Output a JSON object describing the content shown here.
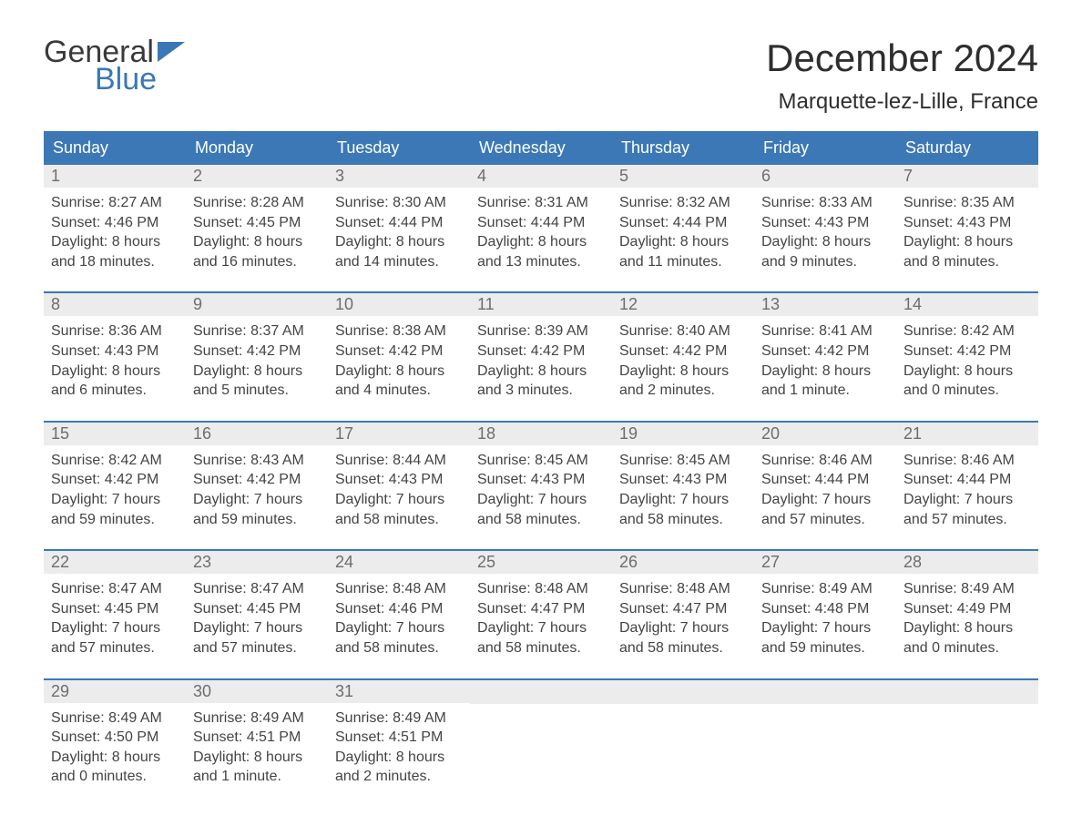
{
  "logo": {
    "word1": "General",
    "word2": "Blue"
  },
  "title": "December 2024",
  "location": "Marquette-lez-Lille, France",
  "colors": {
    "header_bg": "#3b78b5",
    "header_text": "#ffffff",
    "daynum_bg": "#ececec",
    "daynum_text": "#6d6d6d",
    "body_text": "#444444",
    "week_border": "#3b78b5",
    "logo_gray": "#3a3a3a",
    "logo_blue": "#3b78b5",
    "page_bg": "#ffffff"
  },
  "fonts": {
    "title_size_pt": 32,
    "location_size_pt": 18,
    "header_size_pt": 14,
    "body_size_pt": 12
  },
  "day_names": [
    "Sunday",
    "Monday",
    "Tuesday",
    "Wednesday",
    "Thursday",
    "Friday",
    "Saturday"
  ],
  "weeks": [
    [
      {
        "n": "1",
        "sunrise": "Sunrise: 8:27 AM",
        "sunset": "Sunset: 4:46 PM",
        "d1": "Daylight: 8 hours",
        "d2": "and 18 minutes."
      },
      {
        "n": "2",
        "sunrise": "Sunrise: 8:28 AM",
        "sunset": "Sunset: 4:45 PM",
        "d1": "Daylight: 8 hours",
        "d2": "and 16 minutes."
      },
      {
        "n": "3",
        "sunrise": "Sunrise: 8:30 AM",
        "sunset": "Sunset: 4:44 PM",
        "d1": "Daylight: 8 hours",
        "d2": "and 14 minutes."
      },
      {
        "n": "4",
        "sunrise": "Sunrise: 8:31 AM",
        "sunset": "Sunset: 4:44 PM",
        "d1": "Daylight: 8 hours",
        "d2": "and 13 minutes."
      },
      {
        "n": "5",
        "sunrise": "Sunrise: 8:32 AM",
        "sunset": "Sunset: 4:44 PM",
        "d1": "Daylight: 8 hours",
        "d2": "and 11 minutes."
      },
      {
        "n": "6",
        "sunrise": "Sunrise: 8:33 AM",
        "sunset": "Sunset: 4:43 PM",
        "d1": "Daylight: 8 hours",
        "d2": "and 9 minutes."
      },
      {
        "n": "7",
        "sunrise": "Sunrise: 8:35 AM",
        "sunset": "Sunset: 4:43 PM",
        "d1": "Daylight: 8 hours",
        "d2": "and 8 minutes."
      }
    ],
    [
      {
        "n": "8",
        "sunrise": "Sunrise: 8:36 AM",
        "sunset": "Sunset: 4:43 PM",
        "d1": "Daylight: 8 hours",
        "d2": "and 6 minutes."
      },
      {
        "n": "9",
        "sunrise": "Sunrise: 8:37 AM",
        "sunset": "Sunset: 4:42 PM",
        "d1": "Daylight: 8 hours",
        "d2": "and 5 minutes."
      },
      {
        "n": "10",
        "sunrise": "Sunrise: 8:38 AM",
        "sunset": "Sunset: 4:42 PM",
        "d1": "Daylight: 8 hours",
        "d2": "and 4 minutes."
      },
      {
        "n": "11",
        "sunrise": "Sunrise: 8:39 AM",
        "sunset": "Sunset: 4:42 PM",
        "d1": "Daylight: 8 hours",
        "d2": "and 3 minutes."
      },
      {
        "n": "12",
        "sunrise": "Sunrise: 8:40 AM",
        "sunset": "Sunset: 4:42 PM",
        "d1": "Daylight: 8 hours",
        "d2": "and 2 minutes."
      },
      {
        "n": "13",
        "sunrise": "Sunrise: 8:41 AM",
        "sunset": "Sunset: 4:42 PM",
        "d1": "Daylight: 8 hours",
        "d2": "and 1 minute."
      },
      {
        "n": "14",
        "sunrise": "Sunrise: 8:42 AM",
        "sunset": "Sunset: 4:42 PM",
        "d1": "Daylight: 8 hours",
        "d2": "and 0 minutes."
      }
    ],
    [
      {
        "n": "15",
        "sunrise": "Sunrise: 8:42 AM",
        "sunset": "Sunset: 4:42 PM",
        "d1": "Daylight: 7 hours",
        "d2": "and 59 minutes."
      },
      {
        "n": "16",
        "sunrise": "Sunrise: 8:43 AM",
        "sunset": "Sunset: 4:42 PM",
        "d1": "Daylight: 7 hours",
        "d2": "and 59 minutes."
      },
      {
        "n": "17",
        "sunrise": "Sunrise: 8:44 AM",
        "sunset": "Sunset: 4:43 PM",
        "d1": "Daylight: 7 hours",
        "d2": "and 58 minutes."
      },
      {
        "n": "18",
        "sunrise": "Sunrise: 8:45 AM",
        "sunset": "Sunset: 4:43 PM",
        "d1": "Daylight: 7 hours",
        "d2": "and 58 minutes."
      },
      {
        "n": "19",
        "sunrise": "Sunrise: 8:45 AM",
        "sunset": "Sunset: 4:43 PM",
        "d1": "Daylight: 7 hours",
        "d2": "and 58 minutes."
      },
      {
        "n": "20",
        "sunrise": "Sunrise: 8:46 AM",
        "sunset": "Sunset: 4:44 PM",
        "d1": "Daylight: 7 hours",
        "d2": "and 57 minutes."
      },
      {
        "n": "21",
        "sunrise": "Sunrise: 8:46 AM",
        "sunset": "Sunset: 4:44 PM",
        "d1": "Daylight: 7 hours",
        "d2": "and 57 minutes."
      }
    ],
    [
      {
        "n": "22",
        "sunrise": "Sunrise: 8:47 AM",
        "sunset": "Sunset: 4:45 PM",
        "d1": "Daylight: 7 hours",
        "d2": "and 57 minutes."
      },
      {
        "n": "23",
        "sunrise": "Sunrise: 8:47 AM",
        "sunset": "Sunset: 4:45 PM",
        "d1": "Daylight: 7 hours",
        "d2": "and 57 minutes."
      },
      {
        "n": "24",
        "sunrise": "Sunrise: 8:48 AM",
        "sunset": "Sunset: 4:46 PM",
        "d1": "Daylight: 7 hours",
        "d2": "and 58 minutes."
      },
      {
        "n": "25",
        "sunrise": "Sunrise: 8:48 AM",
        "sunset": "Sunset: 4:47 PM",
        "d1": "Daylight: 7 hours",
        "d2": "and 58 minutes."
      },
      {
        "n": "26",
        "sunrise": "Sunrise: 8:48 AM",
        "sunset": "Sunset: 4:47 PM",
        "d1": "Daylight: 7 hours",
        "d2": "and 58 minutes."
      },
      {
        "n": "27",
        "sunrise": "Sunrise: 8:49 AM",
        "sunset": "Sunset: 4:48 PM",
        "d1": "Daylight: 7 hours",
        "d2": "and 59 minutes."
      },
      {
        "n": "28",
        "sunrise": "Sunrise: 8:49 AM",
        "sunset": "Sunset: 4:49 PM",
        "d1": "Daylight: 8 hours",
        "d2": "and 0 minutes."
      }
    ],
    [
      {
        "n": "29",
        "sunrise": "Sunrise: 8:49 AM",
        "sunset": "Sunset: 4:50 PM",
        "d1": "Daylight: 8 hours",
        "d2": "and 0 minutes."
      },
      {
        "n": "30",
        "sunrise": "Sunrise: 8:49 AM",
        "sunset": "Sunset: 4:51 PM",
        "d1": "Daylight: 8 hours",
        "d2": "and 1 minute."
      },
      {
        "n": "31",
        "sunrise": "Sunrise: 8:49 AM",
        "sunset": "Sunset: 4:51 PM",
        "d1": "Daylight: 8 hours",
        "d2": "and 2 minutes."
      },
      {
        "empty": true
      },
      {
        "empty": true
      },
      {
        "empty": true
      },
      {
        "empty": true
      }
    ]
  ]
}
